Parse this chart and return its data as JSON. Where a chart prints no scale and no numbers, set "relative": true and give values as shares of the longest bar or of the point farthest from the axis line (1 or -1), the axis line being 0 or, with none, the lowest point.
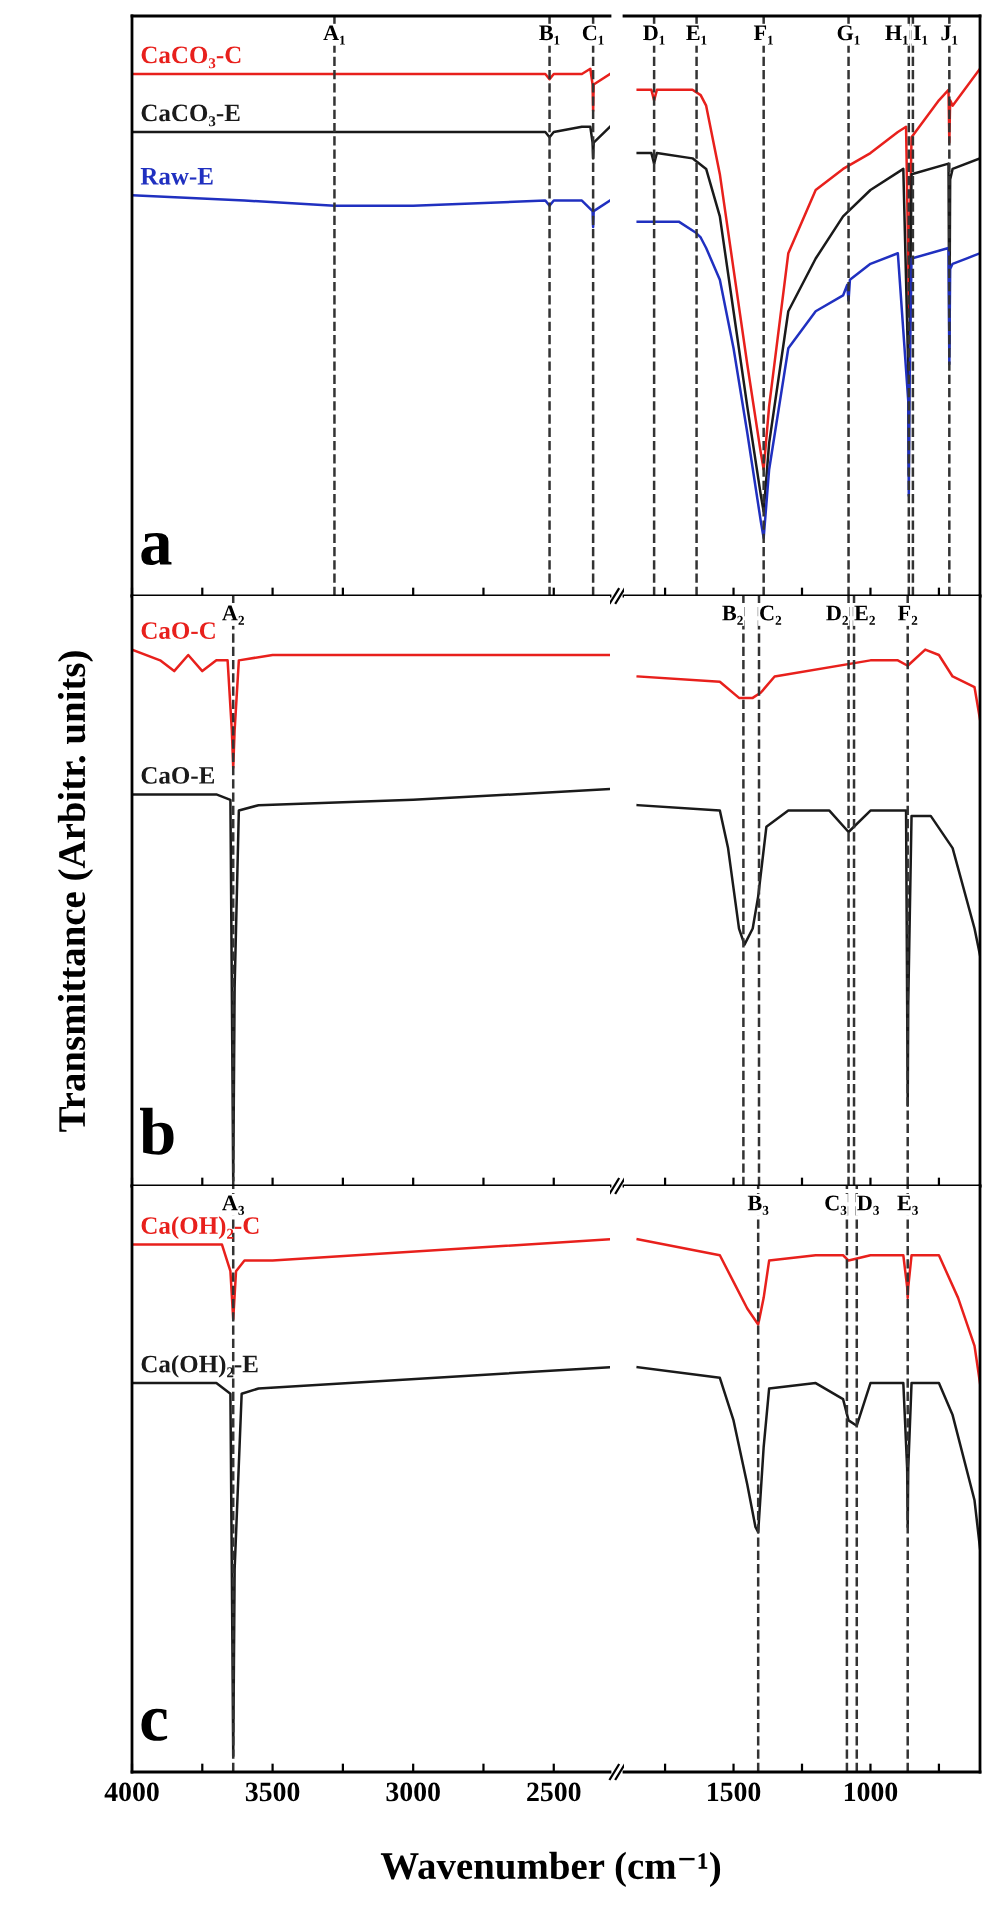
{
  "chart_data": [
    {
      "type": "line",
      "relative": true,
      "xlim": [
        4000,
        2300
      ],
      "xticks": [
        4000,
        {
          "value": 3750,
          "label": null
        },
        3500,
        {
          "value": 3250,
          "label": null
        },
        3000,
        {
          "value": 2750,
          "label": null
        },
        2500
      ],
      "tick_labels": false,
      "annotations": [
        "a"
      ],
      "series": [
        {
          "name": "CaCO₃-C",
          "color": "#e8201c",
          "x": [
            4000,
            3000,
            2530,
            2515,
            2500,
            2400,
            2370,
            2362,
            2360,
            2358,
            2300
          ],
          "values": [
            0.99,
            0.99,
            0.99,
            0.98,
            0.99,
            0.99,
            1,
            0.97,
            0.92,
            0.97,
            0.99
          ]
        },
        {
          "name": "CaCO₃-E",
          "color": "#1a1a1a",
          "x": [
            4000,
            3000,
            2530,
            2515,
            2500,
            2400,
            2370,
            2362,
            2360,
            2358,
            2300
          ],
          "values": [
            0.88,
            0.88,
            0.88,
            0.87,
            0.88,
            0.89,
            0.89,
            0.86,
            0.83,
            0.86,
            0.89
          ]
        },
        {
          "name": "Raw-E",
          "color": "#2030c0",
          "x": [
            4000,
            3600,
            3280,
            3000,
            2530,
            2515,
            2500,
            2400,
            2362,
            2360,
            2358,
            2300
          ],
          "values": [
            0.76,
            0.75,
            0.74,
            0.74,
            0.75,
            0.74,
            0.75,
            0.75,
            0.73,
            0.7,
            0.73,
            0.75
          ]
        }
      ],
      "ref_lines": [
        {
          "axis": "x",
          "value": 3280,
          "label": "A₁"
        },
        {
          "axis": "x",
          "value": 2515,
          "label": "B₁"
        },
        {
          "axis": "x",
          "value": 2360,
          "label": "C₁"
        }
      ]
    },
    {
      "type": "line",
      "relative": true,
      "xlim": [
        1900,
        600
      ],
      "xticks": [
        {
          "value": 1750,
          "label": null
        },
        1500,
        {
          "value": 1250,
          "label": null
        },
        1000,
        {
          "value": 750,
          "label": null
        }
      ],
      "tick_labels": false,
      "series": [
        {
          "color": "#e8201c",
          "x": [
            1850,
            1800,
            1790,
            1780,
            1650,
            1620,
            1600,
            1550,
            1500,
            1450,
            1400,
            1390,
            1370,
            1300,
            1200,
            1100,
            1000,
            900,
            870,
            862,
            860,
            858,
            850,
            750,
            715,
            712,
            709,
            700,
            600
          ],
          "values": [
            0.96,
            0.96,
            0.94,
            0.96,
            0.96,
            0.95,
            0.93,
            0.8,
            0.62,
            0.44,
            0.27,
            0.24,
            0.36,
            0.65,
            0.77,
            0.81,
            0.84,
            0.88,
            0.89,
            0.64,
            0.54,
            0.64,
            0.87,
            0.94,
            0.96,
            0.86,
            0.94,
            0.93,
            1
          ]
        },
        {
          "color": "#1a1a1a",
          "x": [
            1850,
            1800,
            1790,
            1780,
            1650,
            1600,
            1550,
            1500,
            1450,
            1400,
            1390,
            1370,
            1300,
            1200,
            1100,
            1000,
            880,
            862,
            860,
            858,
            850,
            715,
            712,
            709,
            700,
            600
          ],
          "values": [
            0.84,
            0.84,
            0.82,
            0.84,
            0.83,
            0.81,
            0.72,
            0.54,
            0.36,
            0.19,
            0.16,
            0.29,
            0.54,
            0.64,
            0.72,
            0.77,
            0.81,
            0.43,
            0.23,
            0.43,
            0.8,
            0.82,
            0.47,
            0.79,
            0.81,
            0.83
          ]
        },
        {
          "color": "#2030c0",
          "x": [
            1850,
            1700,
            1640,
            1620,
            1600,
            1550,
            1500,
            1450,
            1400,
            1390,
            1370,
            1300,
            1200,
            1100,
            1085,
            1080,
            1075,
            1000,
            900,
            862,
            860,
            858,
            850,
            715,
            712,
            709,
            700,
            650,
            600
          ],
          "values": [
            0.71,
            0.71,
            0.69,
            0.68,
            0.66,
            0.6,
            0.47,
            0.31,
            0.14,
            0.11,
            0.24,
            0.47,
            0.54,
            0.57,
            0.59,
            0.56,
            0.6,
            0.63,
            0.65,
            0.37,
            0.19,
            0.37,
            0.64,
            0.66,
            0.44,
            0.62,
            0.63,
            0.64,
            0.65
          ]
        }
      ],
      "ref_lines": [
        {
          "axis": "x",
          "value": 1790,
          "label": "D₁"
        },
        {
          "axis": "x",
          "value": 1635,
          "label": "E₁"
        },
        {
          "axis": "x",
          "value": 1390,
          "label": "F₁"
        },
        {
          "axis": "x",
          "value": 1080,
          "label": "G₁"
        },
        {
          "axis": "x",
          "value": 860,
          "label": "H₁"
        },
        {
          "axis": "x",
          "value": 845,
          "label": "I₁"
        },
        {
          "axis": "x",
          "value": 712,
          "label": "J₁"
        }
      ]
    },
    {
      "type": "line",
      "relative": true,
      "xlim": [
        4000,
        2300
      ],
      "xticks": [
        4000,
        {
          "value": 3750,
          "label": null
        },
        3500,
        {
          "value": 3250,
          "label": null
        },
        3000,
        {
          "value": 2750,
          "label": null
        },
        2500
      ],
      "tick_labels": false,
      "annotations": [
        "b"
      ],
      "ylabel": "Transmittance (Arbitr. units)",
      "series": [
        {
          "name": "CaO-C",
          "color": "#e8201c",
          "x": [
            4000,
            3900,
            3850,
            3800,
            3750,
            3700,
            3660,
            3645,
            3640,
            3635,
            3620,
            3500,
            3000,
            2300
          ],
          "values": [
            1,
            0.98,
            0.96,
            0.99,
            0.96,
            0.98,
            0.98,
            0.85,
            0.78,
            0.85,
            0.98,
            0.99,
            0.99,
            0.99
          ]
        },
        {
          "name": "CaO-E",
          "color": "#1a1a1a",
          "x": [
            4000,
            3700,
            3650,
            3645,
            3640,
            3635,
            3620,
            3550,
            3000,
            2300
          ],
          "values": [
            0.73,
            0.73,
            0.72,
            0.37,
            0.01,
            0.37,
            0.7,
            0.71,
            0.72,
            0.74
          ]
        }
      ],
      "ref_lines": [
        {
          "axis": "x",
          "value": 3640,
          "label": "A₂"
        }
      ]
    },
    {
      "type": "line",
      "relative": true,
      "xlim": [
        1900,
        600
      ],
      "xticks": [
        {
          "value": 1750,
          "label": null
        },
        1500,
        {
          "value": 1250,
          "label": null
        },
        1000,
        {
          "value": 750,
          "label": null
        }
      ],
      "tick_labels": false,
      "series": [
        {
          "color": "#e8201c",
          "x": [
            1850,
            1550,
            1480,
            1430,
            1400,
            1350,
            1000,
            900,
            864,
            800,
            750,
            700,
            620,
            600
          ],
          "values": [
            0.95,
            0.94,
            0.91,
            0.91,
            0.92,
            0.95,
            0.98,
            0.98,
            0.97,
            1,
            0.99,
            0.95,
            0.93,
            0.87
          ]
        },
        {
          "color": "#1a1a1a",
          "x": [
            1850,
            1550,
            1520,
            1480,
            1460,
            1430,
            1410,
            1380,
            1300,
            1150,
            1080,
            1000,
            870,
            866,
            864,
            862,
            850,
            780,
            700,
            620,
            600
          ],
          "values": [
            0.71,
            0.7,
            0.63,
            0.48,
            0.45,
            0.48,
            0.54,
            0.67,
            0.7,
            0.7,
            0.66,
            0.7,
            0.7,
            0.34,
            0.15,
            0.34,
            0.69,
            0.69,
            0.63,
            0.48,
            0.43
          ]
        }
      ],
      "ref_lines": [
        {
          "axis": "x",
          "value": 1464,
          "label": "B₂"
        },
        {
          "axis": "x",
          "value": 1407,
          "label": "C₂"
        },
        {
          "axis": "x",
          "value": 1080,
          "label": "D₂"
        },
        {
          "axis": "x",
          "value": 1060,
          "label": "E₂"
        },
        {
          "axis": "x",
          "value": 864,
          "label": "F₂"
        }
      ]
    },
    {
      "type": "line",
      "relative": true,
      "xlim": [
        4000,
        2300
      ],
      "xticks": [
        4000,
        {
          "value": 3750,
          "label": null
        },
        3500,
        {
          "value": 3250,
          "label": null
        },
        3000,
        {
          "value": 2750,
          "label": null
        },
        2500
      ],
      "tick_labels": "x",
      "annotations": [
        "c"
      ],
      "xlabel": "Wavenumber (cm⁻¹)",
      "series": [
        {
          "name": "Ca(OH)₂-C",
          "color": "#e8201c",
          "x": [
            4000,
            3680,
            3650,
            3640,
            3630,
            3600,
            3500,
            2300
          ],
          "values": [
            0.99,
            0.99,
            0.94,
            0.85,
            0.94,
            0.96,
            0.96,
            1
          ]
        },
        {
          "name": "Ca(OH)₂-E",
          "color": "#1a1a1a",
          "x": [
            4000,
            3700,
            3650,
            3645,
            3640,
            3635,
            3610,
            3550,
            2300
          ],
          "values": [
            0.73,
            0.73,
            0.71,
            0.38,
            0.03,
            0.38,
            0.71,
            0.72,
            0.76
          ]
        }
      ],
      "ref_lines": [
        {
          "axis": "x",
          "value": 3640,
          "label": "A₃"
        }
      ]
    },
    {
      "type": "line",
      "relative": true,
      "xlim": [
        1900,
        600
      ],
      "xticks": [
        {
          "value": 1750,
          "label": null
        },
        1500,
        {
          "value": 1250,
          "label": null
        },
        1000,
        {
          "value": 750,
          "label": null
        }
      ],
      "tick_labels": "x",
      "series": [
        {
          "color": "#e8201c",
          "x": [
            1850,
            1550,
            1500,
            1450,
            1410,
            1390,
            1370,
            1200,
            1100,
            1080,
            1000,
            880,
            866,
            864,
            862,
            850,
            750,
            680,
            620,
            600
          ],
          "values": [
            1,
            0.97,
            0.92,
            0.87,
            0.84,
            0.89,
            0.96,
            0.97,
            0.97,
            0.96,
            0.97,
            0.97,
            0.91,
            0.89,
            0.91,
            0.97,
            0.97,
            0.89,
            0.8,
            0.73
          ]
        },
        {
          "color": "#1a1a1a",
          "x": [
            1850,
            1550,
            1500,
            1450,
            1420,
            1410,
            1390,
            1370,
            1200,
            1100,
            1080,
            1050,
            1000,
            880,
            866,
            864,
            862,
            850,
            750,
            700,
            620,
            600
          ],
          "values": [
            0.76,
            0.74,
            0.66,
            0.54,
            0.46,
            0.45,
            0.61,
            0.72,
            0.73,
            0.7,
            0.66,
            0.65,
            0.73,
            0.73,
            0.57,
            0.46,
            0.57,
            0.73,
            0.73,
            0.67,
            0.51,
            0.42
          ]
        }
      ],
      "ref_lines": [
        {
          "axis": "x",
          "value": 1410,
          "label": "B₃"
        },
        {
          "axis": "x",
          "value": 1086,
          "label": "C₃"
        },
        {
          "axis": "x",
          "value": 1050,
          "label": "D₃"
        },
        {
          "axis": "x",
          "value": 864,
          "label": "E₃"
        }
      ]
    }
  ]
}
